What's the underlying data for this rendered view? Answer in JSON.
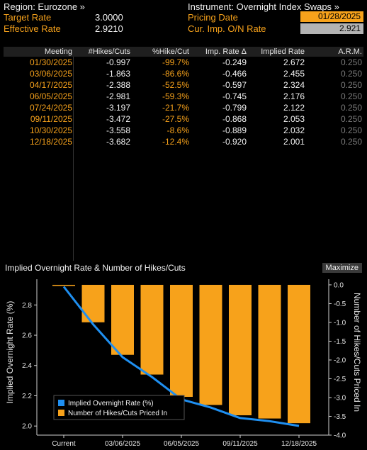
{
  "header": {
    "region_label": "Region: Eurozone »",
    "target_rate_label": "Target Rate",
    "target_rate_value": "3.0000",
    "effective_rate_label": "Effective Rate",
    "effective_rate_value": "2.9210",
    "instrument_label": "Instrument: Overnight Index Swaps »",
    "pricing_date_label": "Pricing Date",
    "pricing_date_value": "01/28/2025",
    "cur_on_label": "Cur. Imp. O/N Rate",
    "cur_on_value": "2.921"
  },
  "table": {
    "columns": [
      "Meeting",
      "#Hikes/Cuts",
      "%Hike/Cut",
      "Imp. Rate Δ",
      "Implied Rate",
      "A.R.M."
    ],
    "rows": [
      [
        "01/30/2025",
        "-0.997",
        "-99.7%",
        "-0.249",
        "2.672",
        "0.250"
      ],
      [
        "03/06/2025",
        "-1.863",
        "-86.6%",
        "-0.466",
        "2.455",
        "0.250"
      ],
      [
        "04/17/2025",
        "-2.388",
        "-52.5%",
        "-0.597",
        "2.324",
        "0.250"
      ],
      [
        "06/05/2025",
        "-2.981",
        "-59.3%",
        "-0.745",
        "2.176",
        "0.250"
      ],
      [
        "07/24/2025",
        "-3.197",
        "-21.7%",
        "-0.799",
        "2.122",
        "0.250"
      ],
      [
        "09/11/2025",
        "-3.472",
        "-27.5%",
        "-0.868",
        "2.053",
        "0.250"
      ],
      [
        "10/30/2025",
        "-3.558",
        "-8.6%",
        "-0.889",
        "2.032",
        "0.250"
      ],
      [
        "12/18/2025",
        "-3.682",
        "-12.4%",
        "-0.920",
        "2.001",
        "0.250"
      ]
    ]
  },
  "chart_panel": {
    "title": "Implied Overnight Rate & Number of Hikes/Cuts",
    "maximize_label": "Maximize"
  },
  "colors": {
    "accent_orange": "#f7a21b",
    "line_blue": "#1f8ff0",
    "background": "#000000"
  },
  "chart_data": {
    "type": "bar",
    "categories": [
      "Current",
      "01/30/2025",
      "03/06/2025",
      "04/17/2025",
      "06/05/2025",
      "07/24/2025",
      "09/11/2025",
      "10/30/2025",
      "12/18/2025"
    ],
    "x_tick_labels": [
      "Current",
      "03/06/2025",
      "06/05/2025",
      "09/11/2025",
      "12/18/2025"
    ],
    "series": [
      {
        "name": "Implied Overnight Rate (%)",
        "type": "line",
        "axis": "left",
        "values": [
          2.921,
          2.672,
          2.455,
          2.324,
          2.176,
          2.122,
          2.053,
          2.032,
          2.001
        ]
      },
      {
        "name": "Number of Hikes/Cuts Priced In",
        "type": "bar",
        "axis": "right",
        "values": [
          0,
          -0.997,
          -1.863,
          -2.388,
          -2.981,
          -3.197,
          -3.472,
          -3.558,
          -3.682
        ]
      }
    ],
    "ylabel_left": "Implied Overnight Rate (%)",
    "ylabel_right": "Number of Hikes/Cuts Priced In",
    "ylim_left": [
      1.94,
      2.97
    ],
    "ylim_right": [
      -4.0,
      0.15
    ],
    "yticks_left": [
      "2.0",
      "2.2",
      "2.4",
      "2.6",
      "2.8"
    ],
    "yticks_right": [
      "0.0",
      "-0.5",
      "-1.0",
      "-1.5",
      "-2.0",
      "-2.5",
      "-3.0",
      "-3.5",
      "-4.0"
    ],
    "legend_position": "bottom-left",
    "grid": false
  }
}
